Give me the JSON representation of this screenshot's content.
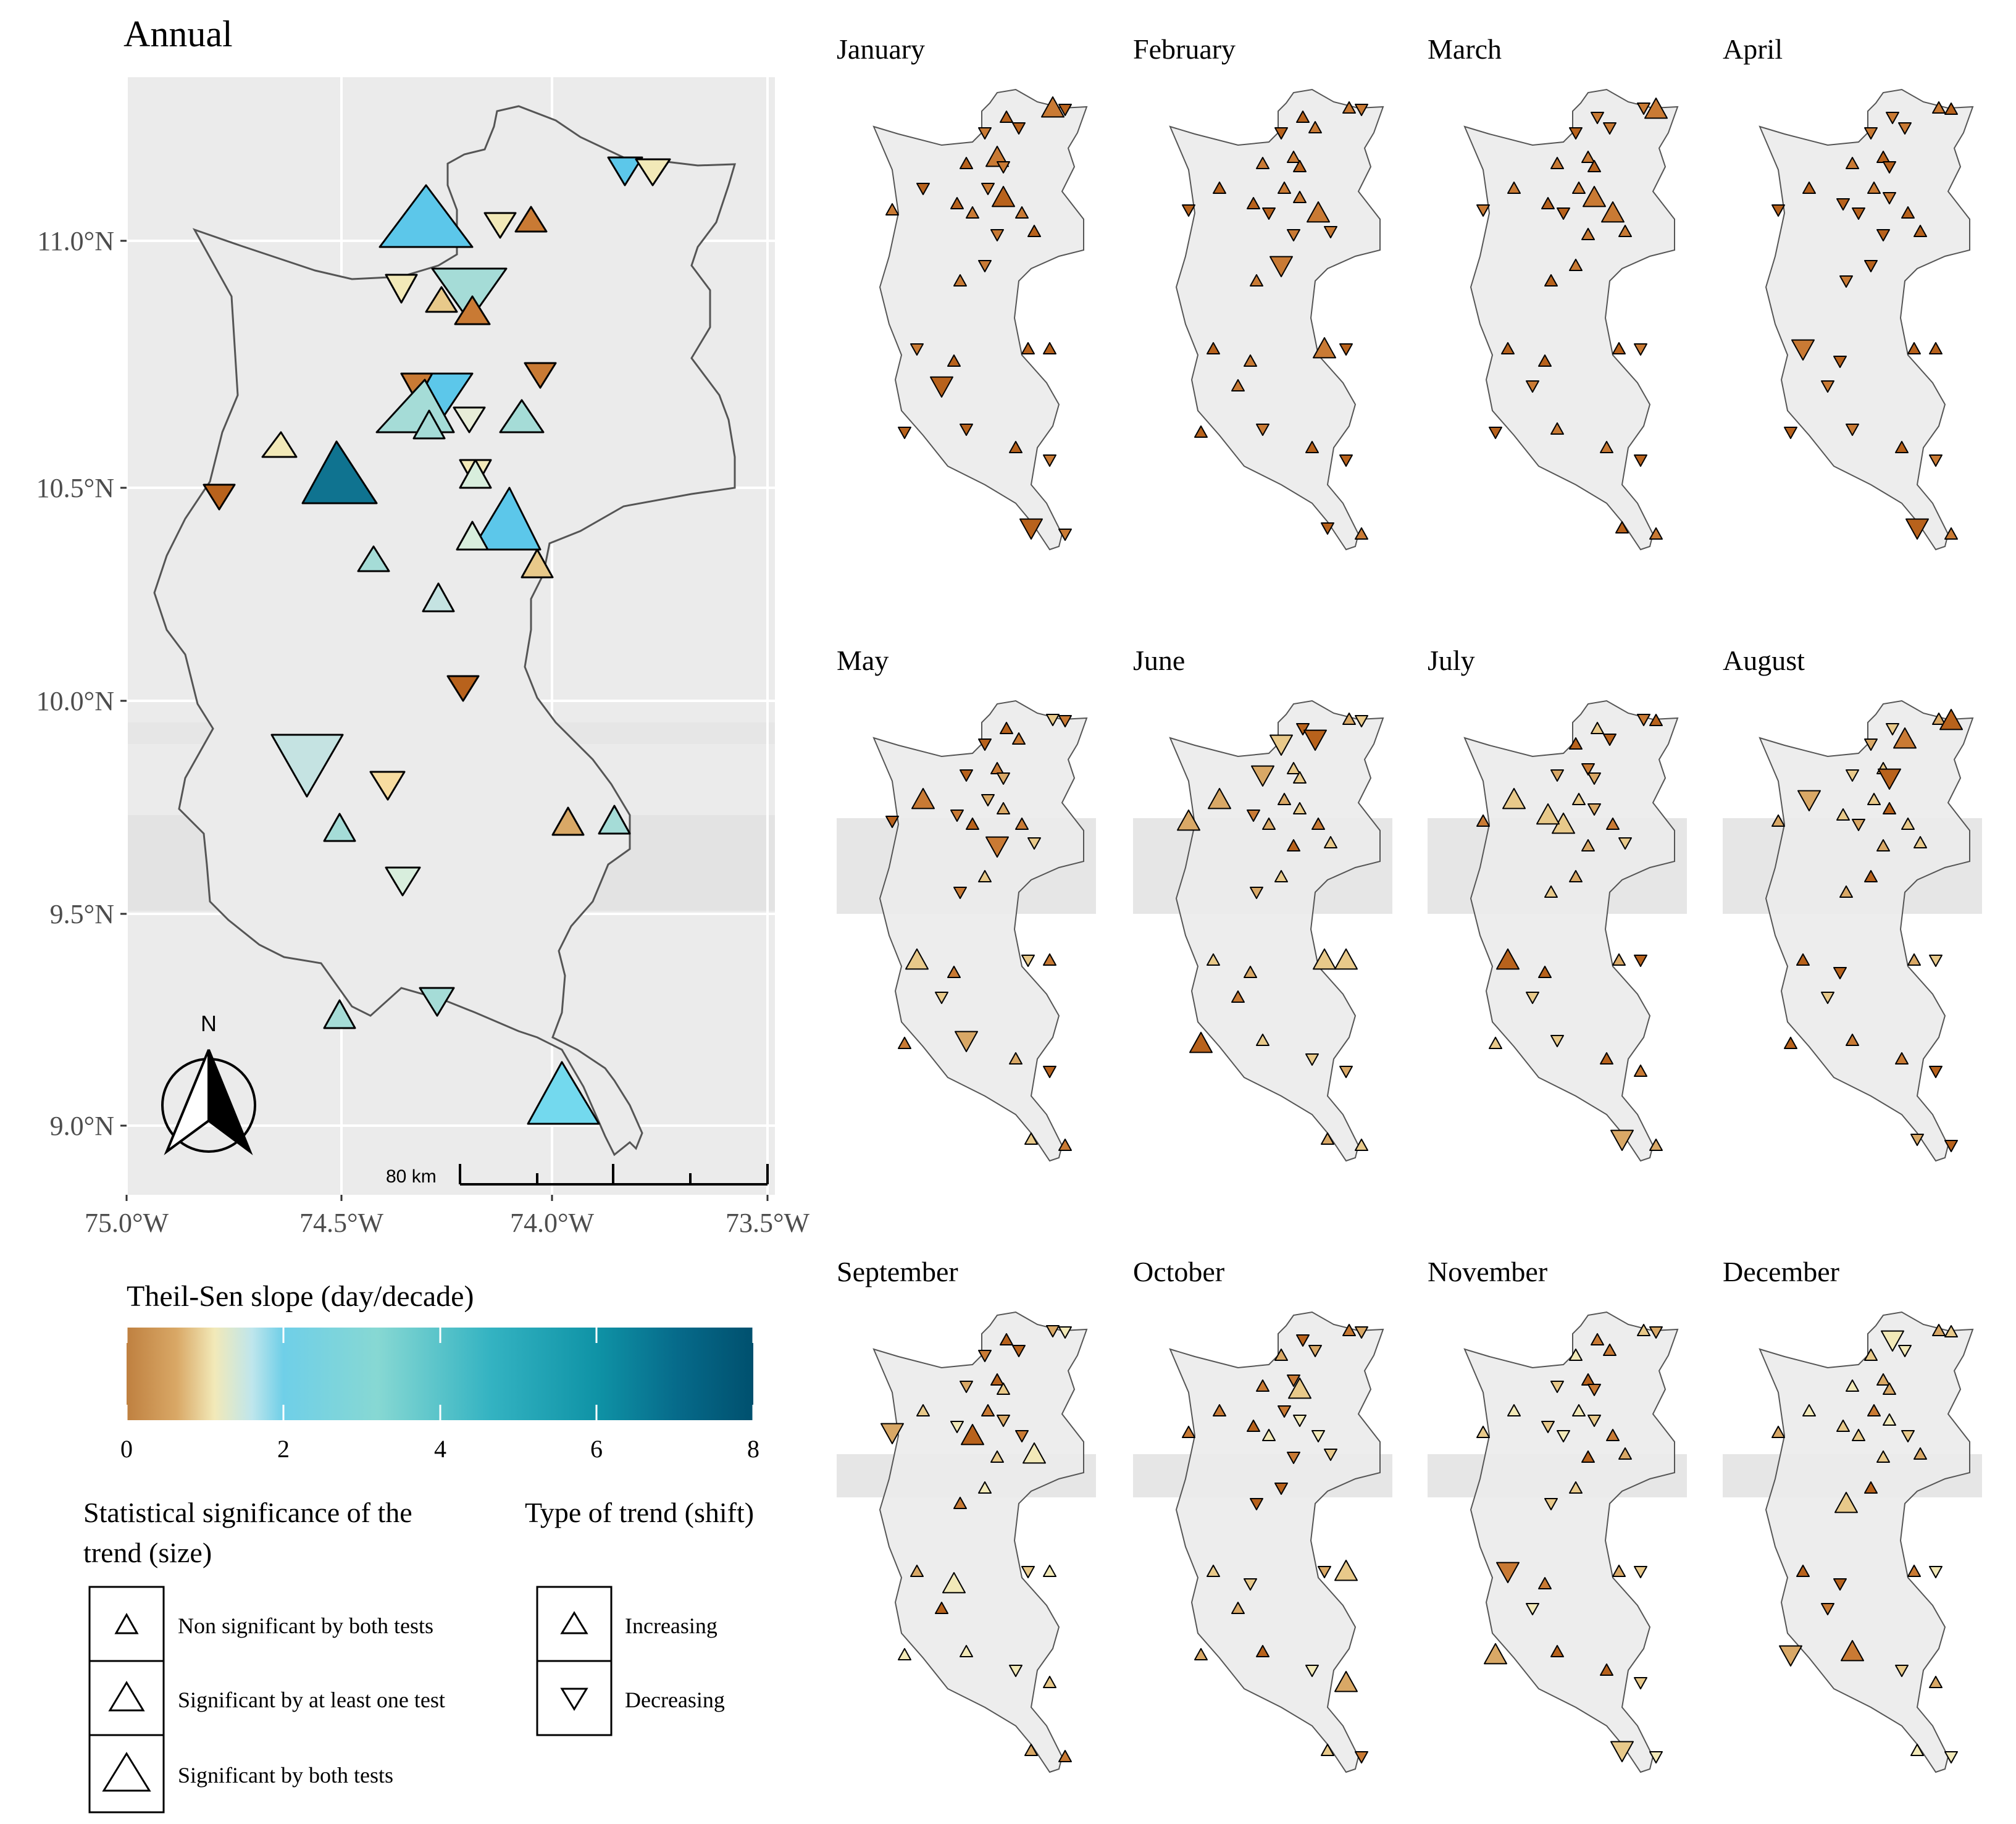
{
  "main_map": {
    "title": "Annual",
    "lat_labels": [
      "11.0°N",
      "10.5°N",
      "10.0°N",
      "9.5°N",
      "9.0°N"
    ],
    "lon_labels": [
      "75.0°W",
      "74.5°W",
      "74.0°W",
      "73.5°W"
    ],
    "north_label": "N",
    "scalebar_label": "80 km",
    "panel_bg": "#ebebeb",
    "outline_color": "#555555"
  },
  "legend": {
    "colorbar_title": "Theil-Sen slope (day/decade)",
    "colorbar_ticks": [
      "0",
      "2",
      "4",
      "6",
      "8"
    ],
    "colorbar_colors": [
      "#bf8040",
      "#d9a866",
      "#f2e9b8",
      "#6fcfe8",
      "#87d8d3",
      "#34b3c2",
      "#0f93a6",
      "#066a8a",
      "#00506e"
    ],
    "size_title_line1": "Statistical significance of the",
    "size_title_line2": "trend (size)",
    "size_items": [
      "Non significant by both tests",
      "Significant by at least one test",
      "Significant by both tests"
    ],
    "shape_title": "Type of trend (shift)",
    "shape_items": [
      "Increasing",
      "Decreasing"
    ]
  },
  "months": [
    "January",
    "February",
    "March",
    "April",
    "May",
    "June",
    "July",
    "August",
    "September",
    "October",
    "November",
    "December"
  ],
  "station_colors": {
    "dark_brown": "#b8621c",
    "brown": "#c97a34",
    "tan": "#d9a866",
    "light_tan": "#e8c98a",
    "cream": "#f2e9b8",
    "pale_green": "#d8eedd",
    "pale_blue": "#c5e3e2",
    "mint": "#a5dcd7",
    "sky": "#5cc7ea",
    "cyan": "#73d9ee",
    "teal_dark": "#0f7390"
  }
}
